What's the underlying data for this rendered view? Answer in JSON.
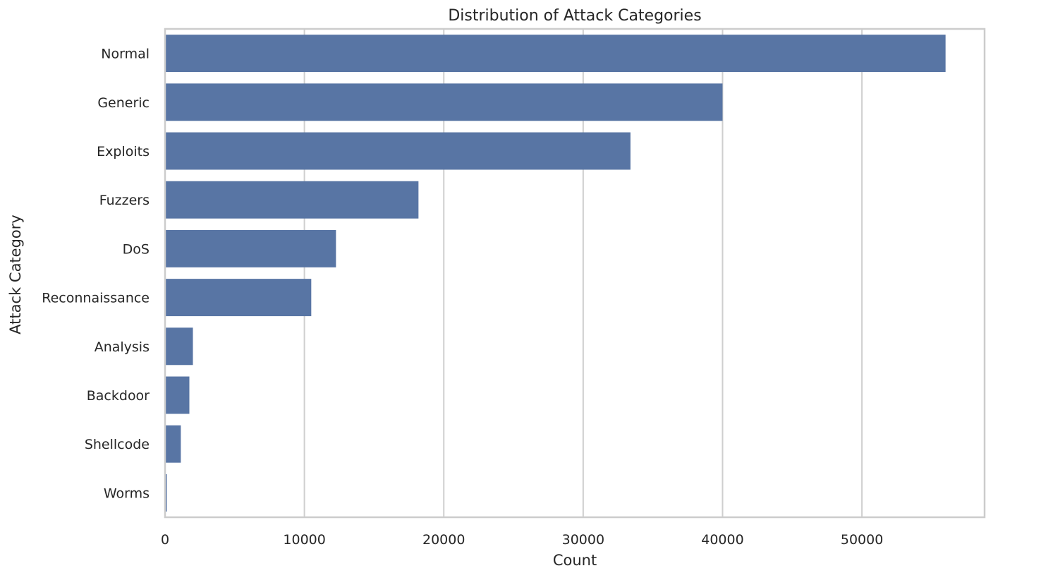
{
  "chart_data": {
    "type": "bar",
    "orientation": "horizontal",
    "title": "Distribution of Attack Categories",
    "xlabel": "Count",
    "ylabel": "Attack Category",
    "categories": [
      "Normal",
      "Generic",
      "Exploits",
      "Fuzzers",
      "DoS",
      "Reconnaissance",
      "Analysis",
      "Backdoor",
      "Shellcode",
      "Worms"
    ],
    "values": [
      56000,
      40000,
      33393,
      18184,
      12264,
      10491,
      2000,
      1746,
      1133,
      130
    ],
    "xlim": [
      0,
      58800
    ],
    "xticks": [
      0,
      10000,
      20000,
      30000,
      40000,
      50000
    ],
    "xtick_labels": [
      "0",
      "10000",
      "20000",
      "30000",
      "40000",
      "50000"
    ],
    "grid": "vertical",
    "bar_color": "#5875a4"
  }
}
